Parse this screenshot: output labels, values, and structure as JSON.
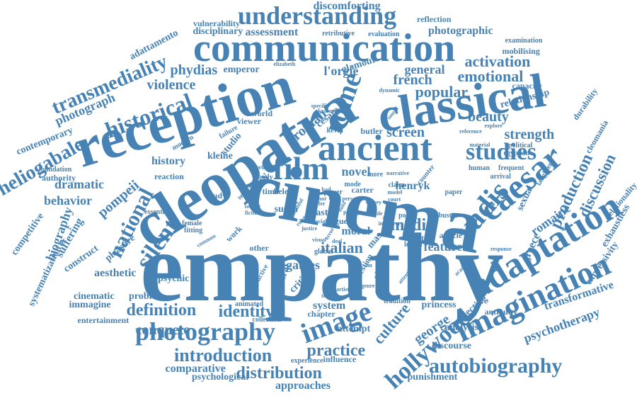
{
  "color": "#4682b4",
  "words": [
    "empathy",
    "cinema",
    "cleopatra",
    "reception",
    "classical",
    "ancient",
    "communication",
    "film",
    "caesar",
    "adaptation",
    "imagination",
    "vadis",
    "rome",
    "photography",
    "image",
    "studies",
    "hollywood",
    "autobiography",
    "silent",
    "national",
    "understanding",
    "historical",
    "heliogabale",
    "transmediality",
    "introduction",
    "identity",
    "definition",
    "conquete",
    "distribution",
    "practice",
    "italian",
    "culture",
    "george",
    "production",
    "discussion",
    "romaine",
    "popular",
    "activation",
    "emotional",
    "general",
    "beauty",
    "strength",
    "media",
    "feature",
    "gaules",
    "moral",
    "novel",
    "henryk",
    "screen",
    "roman",
    "french",
    "pompeii",
    "dramatic",
    "behavior",
    "biography",
    "suffering",
    "construct",
    "pleasure",
    "aesthetic",
    "psychic",
    "cinematic",
    "problem",
    "immagine",
    "entertainment",
    "comparative",
    "psychological",
    "approaches",
    "punishment",
    "attempt",
    "system",
    "chapter",
    "critique",
    "cultural",
    "question",
    "slave",
    "lesson",
    "effect",
    "princess",
    "analysis",
    "discourse",
    "projecting",
    "antiquity",
    "psychotherapy",
    "transformative",
    "expressivity",
    "exhaustless",
    "relationality",
    "cleomania",
    "durability",
    "capacity",
    "relationship",
    "mobilising",
    "examination",
    "photographic",
    "reflection",
    "evaluation",
    "retributive",
    "assessment",
    "disciplinary",
    "vulnerability",
    "discomforting",
    "adattamento",
    "photograph",
    "contemporary",
    "competitive",
    "systematization",
    "authority",
    "foundation",
    "violence",
    "phydias",
    "emperor",
    "elizabeth",
    "glamour",
    "l'orgie",
    "kleine",
    "studio",
    "history",
    "study",
    "reaction",
    "helen",
    "kevin",
    "butler",
    "cesare",
    "keaton",
    "susan",
    "mas",
    "greece",
    "sexual",
    "laughter",
    "political",
    "egyptian",
    "arrival",
    "frequent",
    "human",
    "paper",
    "article",
    "buster",
    "response",
    "academic",
    "explore",
    "reference",
    "material",
    "word",
    "body",
    "viewer",
    "world",
    "failure",
    "modern",
    "essential",
    "female",
    "fitting",
    "work",
    "other",
    "global",
    "tradition",
    "collection",
    "animated",
    "destructive",
    "theatre",
    "experience",
    "influence",
    "attention",
    "artistic",
    "society",
    "time",
    "search",
    "way",
    "model",
    "court",
    "carter",
    "mode",
    "book",
    "person",
    "sound",
    "dynamic",
    "specific",
    "poetic",
    "shaw",
    "claim",
    "counter",
    "fiction",
    "tourist",
    "common",
    "author",
    "power",
    "offer",
    "argue",
    "past",
    "bad",
    "more",
    "survey",
    "art",
    "social",
    "error",
    "parody",
    "bold",
    "justice",
    "relation",
    "faithful",
    "ruler",
    "visual",
    "comedy",
    "bible",
    "deal",
    "interpret",
    "narrative",
    "genre",
    "actor",
    "sin"
  ]
}
